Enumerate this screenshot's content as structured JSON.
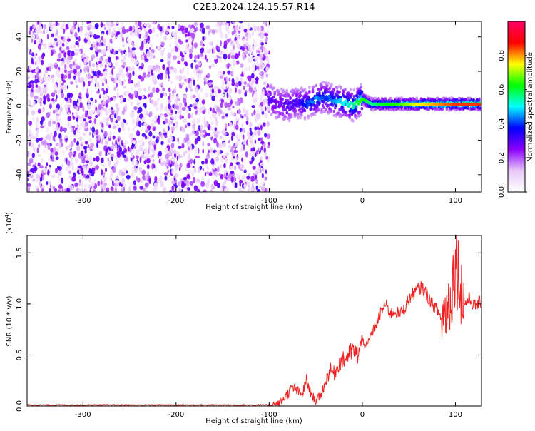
{
  "title": "C2E3.2024.124.15.57.R14",
  "chart_data": [
    {
      "type": "heatmap",
      "xlabel": "Height of straight line (km)",
      "ylabel": "Frequency (Hz)",
      "xlim": [
        -360,
        128
      ],
      "ylim": [
        -50,
        49
      ],
      "xticks": [
        -300,
        -200,
        -100,
        0,
        100
      ],
      "yticks": [
        -40,
        -20,
        0,
        20,
        40
      ],
      "grid": false,
      "noise_region_x": [
        -360,
        -100
      ],
      "signal_ridge": {
        "x": [
          -100,
          -90,
          -80,
          -70,
          -60,
          -50,
          -40,
          -30,
          -20,
          -10,
          -5,
          0,
          10,
          20,
          40,
          60,
          80,
          100,
          128
        ],
        "freq": [
          4,
          1,
          0,
          2,
          1,
          4,
          5,
          3,
          2,
          0,
          2,
          4,
          1,
          1,
          1,
          1,
          1,
          1,
          1
        ],
        "amplitude": [
          0.3,
          0.25,
          0.3,
          0.3,
          0.4,
          0.45,
          0.4,
          0.45,
          0.5,
          0.55,
          0.6,
          0.65,
          0.55,
          0.6,
          0.65,
          0.75,
          0.8,
          0.85,
          0.85
        ]
      }
    },
    {
      "type": "colorbar",
      "label": "Normalized spectral amplitude",
      "range": [
        0,
        1
      ],
      "ticks": [
        "0.0",
        "0.2",
        "0.4",
        "0.6",
        "0.8"
      ],
      "colors": [
        "#ffffff",
        "#e8c8f8",
        "#8a00ff",
        "#0000ff",
        "#00ffff",
        "#00ff00",
        "#ffff00",
        "#ff0000",
        "#ff0066"
      ]
    },
    {
      "type": "line",
      "xlabel": "Height of straight line (km)",
      "ylabel": "SNR (10 * v/v)",
      "multiplier": "(x10^4)",
      "multiplier_base": "(x10",
      "multiplier_exp": "4",
      "multiplier_close": ")",
      "xlim": [
        -360,
        128
      ],
      "ylim": [
        0,
        1.67
      ],
      "xticks": [
        -300,
        -200,
        -100,
        0,
        100
      ],
      "yticks": [
        "0.0",
        "0.5",
        "1.0",
        "1.5"
      ],
      "grid": false,
      "series": [
        {
          "color": "#ee2222",
          "x": [
            -360,
            -330,
            -300,
            -270,
            -240,
            -210,
            -180,
            -150,
            -120,
            -100,
            -90,
            -80,
            -75,
            -70,
            -65,
            -60,
            -55,
            -50,
            -45,
            -40,
            -35,
            -30,
            -25,
            -20,
            -15,
            -10,
            -5,
            0,
            5,
            10,
            15,
            20,
            25,
            30,
            35,
            40,
            45,
            50,
            55,
            60,
            65,
            70,
            75,
            80,
            85,
            90,
            95,
            100,
            105,
            110,
            115,
            120,
            128
          ],
          "y": [
            0.01,
            0.01,
            0.01,
            0.01,
            0.01,
            0.01,
            0.01,
            0.01,
            0.01,
            0.01,
            0.02,
            0.12,
            0.18,
            0.15,
            0.1,
            0.25,
            0.12,
            0.05,
            0.1,
            0.22,
            0.35,
            0.32,
            0.42,
            0.45,
            0.5,
            0.55,
            0.5,
            0.65,
            0.58,
            0.72,
            0.8,
            0.92,
            1.0,
            0.9,
            0.93,
            0.9,
            0.95,
            1.05,
            1.1,
            1.15,
            1.15,
            1.08,
            1.0,
            0.95,
            0.85,
            0.95,
            1.05,
            1.45,
            1.2,
            1.0,
            1.05,
            0.98,
            1.02
          ]
        }
      ]
    }
  ]
}
